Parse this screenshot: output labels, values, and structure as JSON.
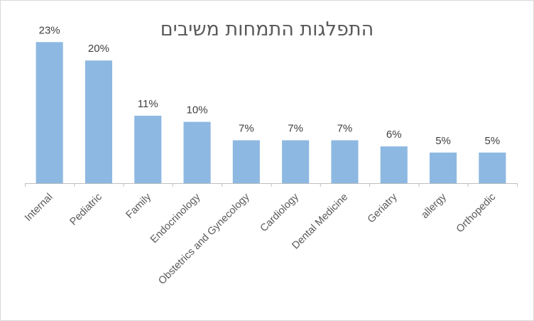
{
  "chart_data": {
    "type": "bar",
    "title": "התפלגות התמחות משיבים",
    "categories": [
      "Internal",
      "Pediatric",
      "Family",
      "Endocrinology",
      "Obstetrics and Gynecology",
      "Cardiology",
      "Dental Medicine",
      "Geriatry",
      "allergy",
      "Orthopedic"
    ],
    "values": [
      23,
      20,
      11,
      10,
      7,
      7,
      7,
      6,
      5,
      5
    ],
    "value_labels": [
      "23%",
      "20%",
      "11%",
      "10%",
      "7%",
      "7%",
      "7%",
      "6%",
      "5%",
      "5%"
    ],
    "ylim": [
      0,
      25
    ],
    "grid": false,
    "legend": "none",
    "bar_color": "#8db8e2",
    "axis_color": "#bfbfbf"
  }
}
